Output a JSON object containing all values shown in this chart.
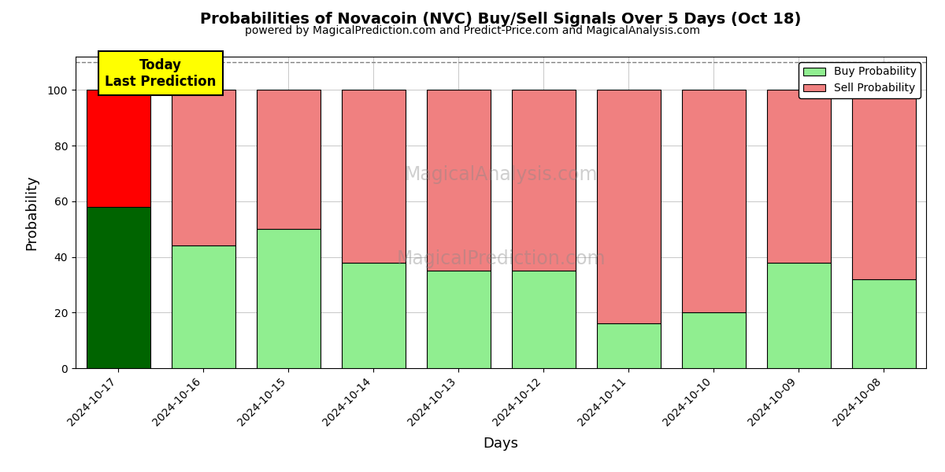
{
  "title": "Probabilities of Novacoin (NVC) Buy/Sell Signals Over 5 Days (Oct 18)",
  "subtitle": "powered by MagicalPrediction.com and Predict-Price.com and MagicalAnalysis.com",
  "xlabel": "Days",
  "ylabel": "Probability",
  "dates": [
    "2024-10-17",
    "2024-10-16",
    "2024-10-15",
    "2024-10-14",
    "2024-10-13",
    "2024-10-12",
    "2024-10-11",
    "2024-10-10",
    "2024-10-09",
    "2024-10-08"
  ],
  "buy_values": [
    58,
    44,
    50,
    38,
    35,
    35,
    16,
    20,
    38,
    32
  ],
  "sell_values": [
    42,
    56,
    50,
    62,
    65,
    65,
    84,
    80,
    62,
    68
  ],
  "today_buy_color": "#006400",
  "today_sell_color": "#FF0000",
  "buy_color": "#90EE90",
  "sell_color": "#F08080",
  "today_label_bg": "#FFFF00",
  "today_label_text": "Today\nLast Prediction",
  "legend_buy": "Buy Probability",
  "legend_sell": "Sell Probability",
  "ylim": [
    0,
    112
  ],
  "yticks": [
    0,
    20,
    40,
    60,
    80,
    100
  ],
  "dashed_line_y": 110,
  "bar_width": 0.75,
  "edgecolor": "#000000",
  "bg_color": "#ffffff",
  "watermark1": "MagicalAnalysis.com",
  "watermark2": "MagicalPrediction.com"
}
